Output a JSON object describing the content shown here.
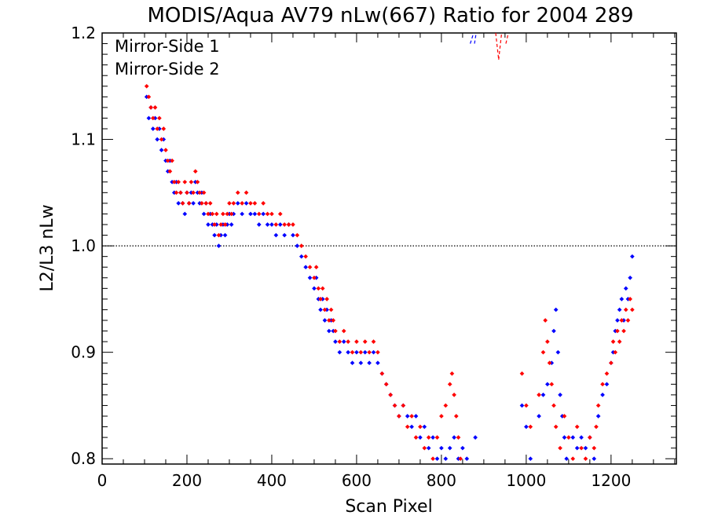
{
  "chart_data": {
    "type": "scatter",
    "title": "MODIS/Aqua AV79 nLw(667) Ratio for 2004 289",
    "xlabel": "Scan Pixel",
    "ylabel": "L2/L3 nLw",
    "xlim": [
      0,
      1354
    ],
    "ylim": [
      0.795,
      1.2
    ],
    "xticks": [
      0,
      200,
      400,
      600,
      800,
      1000,
      1200
    ],
    "yticks": [
      0.8,
      0.9,
      1.0,
      1.1,
      1.2
    ],
    "xtick_labels": [
      "0",
      "200",
      "400",
      "600",
      "800",
      "1000",
      "1200"
    ],
    "ytick_labels": [
      "0.8",
      "0.9",
      "1.0",
      "1.1",
      "1.2"
    ],
    "reference_line": {
      "y": 1.0,
      "style": "dotted"
    },
    "legend": {
      "position": "top-left"
    },
    "grid": false,
    "series": [
      {
        "name": "Mirror-Side 1",
        "color": "#0000ff",
        "points": [
          [
            105,
            1.14
          ],
          [
            110,
            1.12
          ],
          [
            115,
            1.13
          ],
          [
            120,
            1.11
          ],
          [
            125,
            1.12
          ],
          [
            130,
            1.1
          ],
          [
            135,
            1.11
          ],
          [
            140,
            1.09
          ],
          [
            145,
            1.1
          ],
          [
            150,
            1.08
          ],
          [
            155,
            1.07
          ],
          [
            160,
            1.08
          ],
          [
            165,
            1.06
          ],
          [
            170,
            1.05
          ],
          [
            175,
            1.06
          ],
          [
            180,
            1.04
          ],
          [
            185,
            1.05
          ],
          [
            190,
            1.04
          ],
          [
            195,
            1.03
          ],
          [
            200,
            1.05
          ],
          [
            205,
            1.04
          ],
          [
            210,
            1.05
          ],
          [
            215,
            1.04
          ],
          [
            220,
            1.06
          ],
          [
            225,
            1.05
          ],
          [
            230,
            1.04
          ],
          [
            235,
            1.05
          ],
          [
            240,
            1.03
          ],
          [
            245,
            1.04
          ],
          [
            250,
            1.02
          ],
          [
            255,
            1.03
          ],
          [
            260,
            1.02
          ],
          [
            265,
            1.01
          ],
          [
            270,
            1.02
          ],
          [
            275,
            1.0
          ],
          [
            280,
            1.01
          ],
          [
            285,
            1.02
          ],
          [
            290,
            1.01
          ],
          [
            295,
            1.02
          ],
          [
            300,
            1.03
          ],
          [
            305,
            1.02
          ],
          [
            310,
            1.03
          ],
          [
            320,
            1.04
          ],
          [
            330,
            1.03
          ],
          [
            340,
            1.04
          ],
          [
            350,
            1.03
          ],
          [
            360,
            1.03
          ],
          [
            370,
            1.02
          ],
          [
            380,
            1.03
          ],
          [
            390,
            1.02
          ],
          [
            400,
            1.02
          ],
          [
            410,
            1.01
          ],
          [
            420,
            1.02
          ],
          [
            430,
            1.01
          ],
          [
            440,
            1.02
          ],
          [
            450,
            1.01
          ],
          [
            460,
            1.0
          ],
          [
            470,
            0.99
          ],
          [
            480,
            0.98
          ],
          [
            490,
            0.97
          ],
          [
            500,
            0.96
          ],
          [
            505,
            0.97
          ],
          [
            510,
            0.95
          ],
          [
            515,
            0.94
          ],
          [
            520,
            0.95
          ],
          [
            525,
            0.93
          ],
          [
            530,
            0.94
          ],
          [
            535,
            0.92
          ],
          [
            540,
            0.93
          ],
          [
            545,
            0.92
          ],
          [
            550,
            0.91
          ],
          [
            560,
            0.9
          ],
          [
            570,
            0.91
          ],
          [
            580,
            0.9
          ],
          [
            590,
            0.89
          ],
          [
            600,
            0.9
          ],
          [
            610,
            0.89
          ],
          [
            620,
            0.9
          ],
          [
            630,
            0.89
          ],
          [
            640,
            0.9
          ],
          [
            650,
            0.89
          ],
          [
            660,
            0.88
          ],
          [
            670,
            0.87
          ],
          [
            680,
            0.86
          ],
          [
            690,
            0.85
          ],
          [
            700,
            0.84
          ],
          [
            710,
            0.85
          ],
          [
            720,
            0.84
          ],
          [
            730,
            0.83
          ],
          [
            740,
            0.84
          ],
          [
            750,
            0.82
          ],
          [
            760,
            0.83
          ],
          [
            770,
            0.81
          ],
          [
            780,
            0.82
          ],
          [
            790,
            0.8
          ],
          [
            800,
            0.81
          ],
          [
            810,
            0.8
          ],
          [
            820,
            0.81
          ],
          [
            830,
            0.82
          ],
          [
            840,
            0.8
          ],
          [
            850,
            0.81
          ],
          [
            860,
            0.8
          ],
          [
            880,
            0.82
          ],
          [
            990,
            0.85
          ],
          [
            1000,
            0.83
          ],
          [
            1010,
            0.8
          ],
          [
            1030,
            0.84
          ],
          [
            1040,
            0.86
          ],
          [
            1050,
            0.87
          ],
          [
            1060,
            0.89
          ],
          [
            1065,
            0.92
          ],
          [
            1070,
            0.94
          ],
          [
            1075,
            0.9
          ],
          [
            1080,
            0.86
          ],
          [
            1085,
            0.84
          ],
          [
            1090,
            0.82
          ],
          [
            1095,
            0.8
          ],
          [
            1110,
            0.82
          ],
          [
            1120,
            0.81
          ],
          [
            1130,
            0.82
          ],
          [
            1140,
            0.81
          ],
          [
            1150,
            0.82
          ],
          [
            1160,
            0.8
          ],
          [
            1170,
            0.84
          ],
          [
            1180,
            0.86
          ],
          [
            1190,
            0.87
          ],
          [
            1200,
            0.89
          ],
          [
            1205,
            0.9
          ],
          [
            1210,
            0.92
          ],
          [
            1215,
            0.93
          ],
          [
            1220,
            0.94
          ],
          [
            1225,
            0.95
          ],
          [
            1230,
            0.93
          ],
          [
            1235,
            0.96
          ],
          [
            1240,
            0.95
          ],
          [
            1245,
            0.97
          ],
          [
            1250,
            0.99
          ]
        ]
      },
      {
        "name": "Mirror-Side 2",
        "color": "#ff0000",
        "points": [
          [
            105,
            1.15
          ],
          [
            110,
            1.14
          ],
          [
            115,
            1.13
          ],
          [
            120,
            1.12
          ],
          [
            125,
            1.13
          ],
          [
            130,
            1.11
          ],
          [
            135,
            1.12
          ],
          [
            140,
            1.1
          ],
          [
            145,
            1.11
          ],
          [
            150,
            1.09
          ],
          [
            155,
            1.08
          ],
          [
            160,
            1.07
          ],
          [
            165,
            1.08
          ],
          [
            170,
            1.06
          ],
          [
            175,
            1.05
          ],
          [
            180,
            1.06
          ],
          [
            185,
            1.05
          ],
          [
            190,
            1.04
          ],
          [
            195,
            1.06
          ],
          [
            200,
            1.05
          ],
          [
            205,
            1.04
          ],
          [
            210,
            1.06
          ],
          [
            215,
            1.05
          ],
          [
            220,
            1.07
          ],
          [
            225,
            1.06
          ],
          [
            230,
            1.05
          ],
          [
            235,
            1.04
          ],
          [
            240,
            1.05
          ],
          [
            245,
            1.04
          ],
          [
            250,
            1.03
          ],
          [
            255,
            1.04
          ],
          [
            260,
            1.03
          ],
          [
            265,
            1.02
          ],
          [
            270,
            1.03
          ],
          [
            275,
            1.01
          ],
          [
            280,
            1.02
          ],
          [
            285,
            1.03
          ],
          [
            290,
            1.02
          ],
          [
            295,
            1.03
          ],
          [
            300,
            1.04
          ],
          [
            305,
            1.03
          ],
          [
            310,
            1.04
          ],
          [
            320,
            1.05
          ],
          [
            330,
            1.04
          ],
          [
            340,
            1.05
          ],
          [
            350,
            1.04
          ],
          [
            360,
            1.04
          ],
          [
            370,
            1.03
          ],
          [
            380,
            1.04
          ],
          [
            390,
            1.03
          ],
          [
            400,
            1.03
          ],
          [
            410,
            1.02
          ],
          [
            420,
            1.03
          ],
          [
            430,
            1.02
          ],
          [
            440,
            1.02
          ],
          [
            450,
            1.02
          ],
          [
            460,
            1.01
          ],
          [
            470,
            1.0
          ],
          [
            480,
            0.99
          ],
          [
            490,
            0.98
          ],
          [
            500,
            0.97
          ],
          [
            505,
            0.98
          ],
          [
            510,
            0.96
          ],
          [
            515,
            0.95
          ],
          [
            520,
            0.96
          ],
          [
            525,
            0.94
          ],
          [
            530,
            0.95
          ],
          [
            535,
            0.93
          ],
          [
            540,
            0.94
          ],
          [
            545,
            0.93
          ],
          [
            550,
            0.92
          ],
          [
            560,
            0.91
          ],
          [
            570,
            0.92
          ],
          [
            580,
            0.91
          ],
          [
            590,
            0.9
          ],
          [
            600,
            0.91
          ],
          [
            610,
            0.9
          ],
          [
            620,
            0.91
          ],
          [
            630,
            0.9
          ],
          [
            640,
            0.91
          ],
          [
            650,
            0.9
          ],
          [
            660,
            0.88
          ],
          [
            670,
            0.87
          ],
          [
            680,
            0.86
          ],
          [
            690,
            0.85
          ],
          [
            700,
            0.84
          ],
          [
            710,
            0.85
          ],
          [
            720,
            0.83
          ],
          [
            730,
            0.84
          ],
          [
            740,
            0.82
          ],
          [
            750,
            0.83
          ],
          [
            760,
            0.81
          ],
          [
            770,
            0.82
          ],
          [
            780,
            0.8
          ],
          [
            790,
            0.82
          ],
          [
            800,
            0.84
          ],
          [
            810,
            0.85
          ],
          [
            820,
            0.87
          ],
          [
            825,
            0.88
          ],
          [
            830,
            0.86
          ],
          [
            835,
            0.84
          ],
          [
            840,
            0.82
          ],
          [
            845,
            0.8
          ],
          [
            990,
            0.88
          ],
          [
            1000,
            0.85
          ],
          [
            1010,
            0.83
          ],
          [
            1030,
            0.86
          ],
          [
            1040,
            0.9
          ],
          [
            1045,
            0.93
          ],
          [
            1050,
            0.91
          ],
          [
            1055,
            0.89
          ],
          [
            1060,
            0.87
          ],
          [
            1065,
            0.85
          ],
          [
            1070,
            0.83
          ],
          [
            1080,
            0.81
          ],
          [
            1090,
            0.84
          ],
          [
            1100,
            0.82
          ],
          [
            1110,
            0.8
          ],
          [
            1120,
            0.83
          ],
          [
            1130,
            0.81
          ],
          [
            1140,
            0.8
          ],
          [
            1150,
            0.82
          ],
          [
            1160,
            0.81
          ],
          [
            1165,
            0.83
          ],
          [
            1170,
            0.85
          ],
          [
            1180,
            0.87
          ],
          [
            1190,
            0.88
          ],
          [
            1200,
            0.89
          ],
          [
            1205,
            0.91
          ],
          [
            1210,
            0.9
          ],
          [
            1215,
            0.92
          ],
          [
            1220,
            0.91
          ],
          [
            1225,
            0.93
          ],
          [
            1230,
            0.92
          ],
          [
            1235,
            0.94
          ],
          [
            1240,
            0.93
          ],
          [
            1245,
            0.95
          ],
          [
            1250,
            0.94
          ]
        ]
      }
    ],
    "offscale_dashes": [
      {
        "series": "Mirror-Side 1",
        "color": "#0000ff",
        "segments": [
          [
            [
              868,
              1.19
            ],
            [
              876,
              1.2
            ]
          ],
          [
            [
              878,
              1.19
            ],
            [
              882,
              1.2
            ]
          ]
        ]
      },
      {
        "series": "Mirror-Side 2",
        "color": "#ff0000",
        "segments": [
          [
            [
              928,
              1.2
            ],
            [
              935,
              1.175
            ]
          ],
          [
            [
              935,
              1.175
            ],
            [
              942,
              1.2
            ]
          ],
          [
            [
              952,
              1.19
            ],
            [
              958,
              1.2
            ]
          ]
        ]
      }
    ]
  }
}
